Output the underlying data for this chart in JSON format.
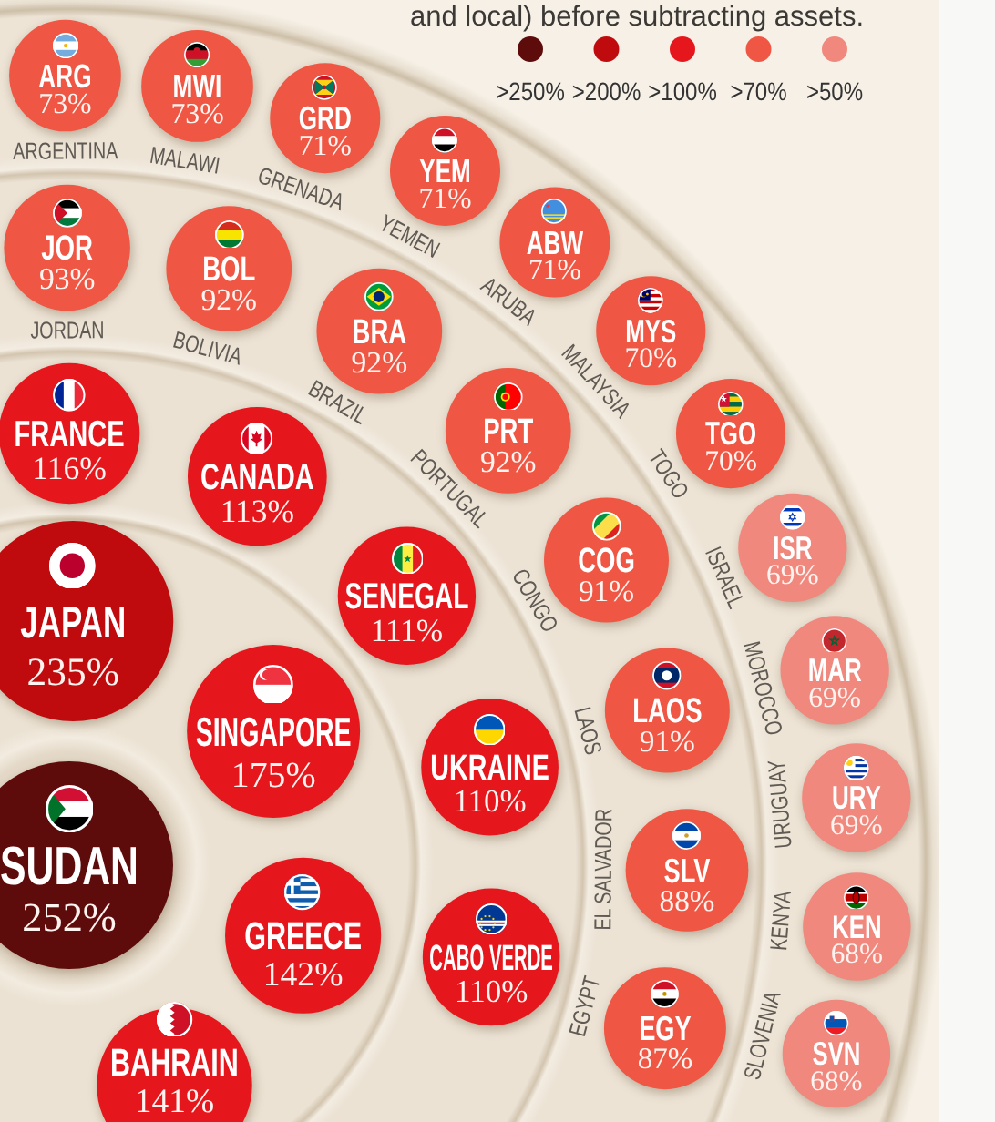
{
  "chart_data": {
    "type": "other",
    "subtitle": "and local) before subtracting assets.",
    "categories": [
      "SUDAN",
      "JAPAN",
      "SINGAPORE",
      "GREECE",
      "BAHRAIN",
      "FRANCE",
      "CANADA",
      "SENEGAL",
      "UKRAINE",
      "CABO VERDE",
      "JOR",
      "BOL",
      "BRA",
      "PRT",
      "COG",
      "LAOS",
      "SLV",
      "EGY",
      "ARG",
      "MWI",
      "GRD",
      "YEM",
      "ABW",
      "MYS",
      "TGO",
      "ISR",
      "MAR",
      "URY",
      "KEN",
      "SVN"
    ],
    "series": [
      {
        "name": ">250%",
        "color": "#5e0b0b",
        "values": [
          252,
          null,
          null,
          null,
          null,
          null,
          null,
          null,
          null,
          null,
          null,
          null,
          null,
          null,
          null,
          null,
          null,
          null,
          null,
          null,
          null,
          null,
          null,
          null,
          null,
          null,
          null,
          null,
          null,
          null
        ],
        "value_labels": [
          "252%",
          null,
          null,
          null,
          null,
          null,
          null,
          null,
          null,
          null,
          null,
          null,
          null,
          null,
          null,
          null,
          null,
          null,
          null,
          null,
          null,
          null,
          null,
          null,
          null,
          null,
          null,
          null,
          null,
          null
        ]
      },
      {
        "name": ">200%",
        "color": "#bf0a0e",
        "values": [
          null,
          235,
          null,
          null,
          null,
          null,
          null,
          null,
          null,
          null,
          null,
          null,
          null,
          null,
          null,
          null,
          null,
          null,
          null,
          null,
          null,
          null,
          null,
          null,
          null,
          null,
          null,
          null,
          null,
          null
        ],
        "value_labels": [
          null,
          "235%",
          null,
          null,
          null,
          null,
          null,
          null,
          null,
          null,
          null,
          null,
          null,
          null,
          null,
          null,
          null,
          null,
          null,
          null,
          null,
          null,
          null,
          null,
          null,
          null,
          null,
          null,
          null,
          null
        ]
      },
      {
        "name": ">100%",
        "color": "#e5171d",
        "values": [
          null,
          null,
          175,
          142,
          141,
          116,
          113,
          111,
          110,
          110,
          null,
          null,
          null,
          null,
          null,
          null,
          null,
          null,
          null,
          null,
          null,
          null,
          null,
          null,
          null,
          null,
          null,
          null,
          null,
          null
        ],
        "value_labels": [
          null,
          null,
          "175%",
          "142%",
          "141%",
          "116%",
          "113%",
          "111%",
          "110%",
          "110%",
          null,
          null,
          null,
          null,
          null,
          null,
          null,
          null,
          null,
          null,
          null,
          null,
          null,
          null,
          null,
          null,
          null,
          null,
          null,
          null
        ]
      },
      {
        "name": ">70%",
        "color": "#ef5643",
        "values": [
          null,
          null,
          null,
          null,
          null,
          null,
          null,
          null,
          null,
          null,
          93,
          92,
          92,
          92,
          91,
          91,
          88,
          87,
          73,
          73,
          71,
          71,
          71,
          70,
          70,
          null,
          null,
          null,
          null,
          null
        ],
        "value_labels": [
          null,
          null,
          null,
          null,
          null,
          null,
          null,
          null,
          null,
          null,
          "93%",
          "92%",
          "92%",
          "92%",
          "91%",
          "91%",
          "88%",
          "87%",
          "73%",
          "73%",
          "71%",
          "71%",
          "71%",
          "70%",
          "70%",
          null,
          null,
          null,
          null,
          null
        ]
      },
      {
        "name": ">50%",
        "color": "#f1887e",
        "values": [
          null,
          null,
          null,
          null,
          null,
          null,
          null,
          null,
          null,
          null,
          null,
          null,
          null,
          null,
          null,
          null,
          null,
          null,
          null,
          null,
          null,
          null,
          null,
          null,
          null,
          69,
          69,
          69,
          68,
          68
        ],
        "value_labels": [
          null,
          null,
          null,
          null,
          null,
          null,
          null,
          null,
          null,
          null,
          null,
          null,
          null,
          null,
          null,
          null,
          null,
          null,
          null,
          null,
          null,
          null,
          null,
          null,
          null,
          "69%",
          "69%",
          "69%",
          "68%",
          "68%"
        ]
      }
    ],
    "annotations": [
      {
        "text": "JORDAN",
        "x": "JOR"
      },
      {
        "text": "BOLIVIA",
        "x": "BOL"
      },
      {
        "text": "BRAZIL",
        "x": "BRA"
      },
      {
        "text": "PORTUGAL",
        "x": "PRT"
      },
      {
        "text": "CONGO",
        "x": "COG"
      },
      {
        "text": "LAOS",
        "x": "LAOS"
      },
      {
        "text": "EL SALVADOR",
        "x": "SLV"
      },
      {
        "text": "EGYPT",
        "x": "EGY"
      },
      {
        "text": "ARGENTINA",
        "x": "ARG"
      },
      {
        "text": "MALAWI",
        "x": "MWI"
      },
      {
        "text": "GRENADA",
        "x": "GRD"
      },
      {
        "text": "YEMEN",
        "x": "YEM"
      },
      {
        "text": "ARUBA",
        "x": "ABW"
      },
      {
        "text": "MALAYSIA",
        "x": "MYS"
      },
      {
        "text": "TOGO",
        "x": "TGO"
      },
      {
        "text": "ISRAEL",
        "x": "ISR"
      },
      {
        "text": "MOROCCO",
        "x": "MAR"
      },
      {
        "text": "URUGUAY",
        "x": "URY"
      },
      {
        "text": "KENYA",
        "x": "KEN"
      },
      {
        "text": "SLOVENIA",
        "x": "SVN"
      }
    ],
    "legend": "top right"
  }
}
